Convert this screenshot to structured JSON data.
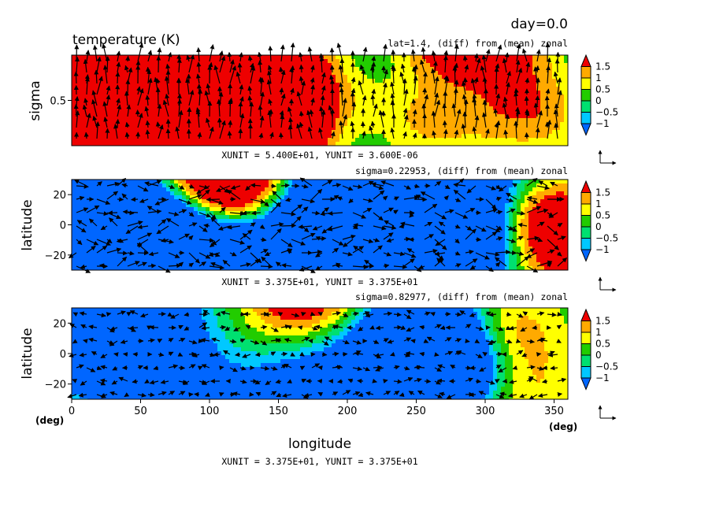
{
  "header": {
    "day_label": "day=0.0",
    "title": "temperature (K)",
    "xaxis_label": "longitude",
    "deg_label": "(deg)"
  },
  "colors": {
    "levels": [
      -1,
      -0.5,
      0,
      0.5,
      1,
      1.5
    ],
    "fills": [
      "#0066ff",
      "#00c8ff",
      "#00e070",
      "#22cc00",
      "#ffff00",
      "#ffaa00",
      "#ee0000"
    ]
  },
  "chart_data": [
    {
      "type": "heatmap",
      "subtitle": "lat=1.4, (diff) from (mean) zonal",
      "ylabel": "sigma",
      "xlim": [
        0,
        360
      ],
      "ylim": [
        0,
        1
      ],
      "yticks": [
        {
          "value": 0.5,
          "label": "0.5"
        }
      ],
      "xticks": [],
      "footer": "XUNIT = 5.400E+01, YUNIT = 3.600E-06",
      "colorbar": [
        "1.5",
        "1",
        "0.5",
        "0",
        "-0.5",
        "-1"
      ],
      "seed": 11
    },
    {
      "type": "heatmap",
      "subtitle": "sigma=0.22953, (diff) from (mean) zonal",
      "ylabel": "latitude",
      "xlim": [
        0,
        360
      ],
      "ylim": [
        -30,
        30
      ],
      "yticks": [
        {
          "value": 20,
          "label": "20"
        },
        {
          "value": 0,
          "label": "0"
        },
        {
          "value": -20,
          "label": "-20"
        }
      ],
      "xticks": [],
      "footer": "XUNIT = 3.375E+01, YUNIT = 3.375E+01",
      "colorbar": [
        "1.5",
        "1",
        "0.5",
        "0",
        "-0.5",
        "-1"
      ],
      "seed": 23
    },
    {
      "type": "heatmap",
      "subtitle": "sigma=0.82977, (diff) from (mean) zonal",
      "ylabel": "latitude",
      "xlim": [
        0,
        360
      ],
      "ylim": [
        -30,
        30
      ],
      "yticks": [
        {
          "value": 20,
          "label": "20"
        },
        {
          "value": 0,
          "label": "0"
        },
        {
          "value": -20,
          "label": "-20"
        }
      ],
      "xticks": [
        {
          "value": 0,
          "label": "0"
        },
        {
          "value": 50,
          "label": "50"
        },
        {
          "value": 100,
          "label": "100"
        },
        {
          "value": 150,
          "label": "150"
        },
        {
          "value": 200,
          "label": "200"
        },
        {
          "value": 250,
          "label": "250"
        },
        {
          "value": 300,
          "label": "300"
        },
        {
          "value": 350,
          "label": "350"
        }
      ],
      "footer": "XUNIT = 3.375E+01, YUNIT = 3.375E+01",
      "colorbar": [
        "1.5",
        "1",
        "0.5",
        "0",
        "-0.5",
        "-1"
      ],
      "seed": 37
    }
  ]
}
